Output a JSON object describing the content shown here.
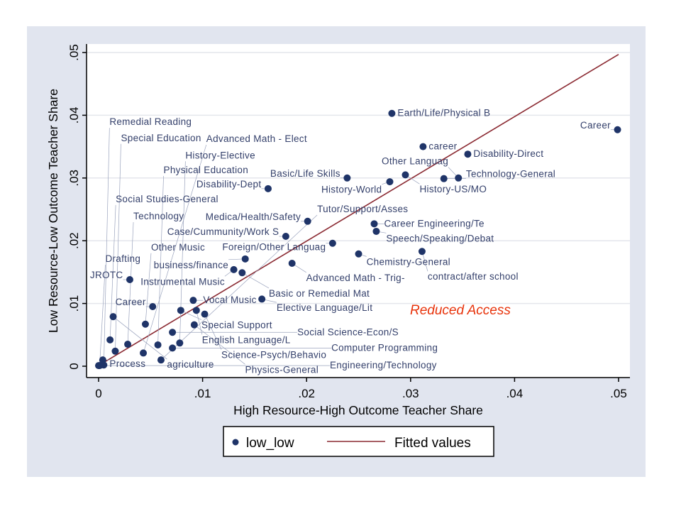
{
  "chart_data": {
    "type": "scatter",
    "xlabel": "High Resource-High Outcome Teacher Share",
    "ylabel": "Low Resource-Low Outcome Teacher Share",
    "xlim": [
      0,
      0.05
    ],
    "ylim": [
      0,
      0.05
    ],
    "xticks": [
      0,
      0.01,
      0.02,
      0.03,
      0.04,
      0.05
    ],
    "xtick_labels": [
      "0",
      ".01",
      ".02",
      ".03",
      ".04",
      ".05"
    ],
    "yticks": [
      0,
      0.01,
      0.02,
      0.03,
      0.04,
      0.05
    ],
    "ytick_labels": [
      "0",
      ".01",
      ".02",
      ".03",
      ".04",
      ".05"
    ],
    "grid": "horizontal",
    "legend": {
      "placement": "bottom",
      "entries": [
        "low_low",
        "Fitted values"
      ]
    },
    "annotation": "Reduced Access",
    "colors": {
      "points": "#1f3468",
      "fit": "#8b2a32",
      "background": "#e1e5ef",
      "annotation": "#e8340c"
    },
    "fitted_line": {
      "name": "Fitted values",
      "x": [
        0,
        0.05
      ],
      "y": [
        0.0001,
        0.0497
      ]
    },
    "series": [
      {
        "name": "low_low",
        "points": [
          {
            "x": 0.0282,
            "y": 0.0403,
            "label": "Earth/Life/Physical B"
          },
          {
            "x": 0.0312,
            "y": 0.035,
            "label": "career"
          },
          {
            "x": 0.0355,
            "y": 0.0338,
            "label": "Disability-Direct"
          },
          {
            "x": 0.0499,
            "y": 0.0377,
            "label": "Career"
          },
          {
            "x": 0.0239,
            "y": 0.03,
            "label": "Basic/Life Skills"
          },
          {
            "x": 0.0295,
            "y": 0.0305,
            "label": "History-US/MO"
          },
          {
            "x": 0.028,
            "y": 0.0294,
            "label": "History-World"
          },
          {
            "x": 0.0332,
            "y": 0.0299,
            "label": "Technology-General"
          },
          {
            "x": 0.0346,
            "y": 0.03,
            "label": "Other Languag"
          },
          {
            "x": 0.0163,
            "y": 0.0283,
            "label": "Disability-Dept"
          },
          {
            "x": 0.0201,
            "y": 0.0231,
            "label": "Medica/Health/Safety"
          },
          {
            "x": 0.0265,
            "y": 0.0227,
            "label": "Career Engineering/Te"
          },
          {
            "x": 0.0267,
            "y": 0.0215,
            "label": "Speech/Speaking/Debat"
          },
          {
            "x": 0.018,
            "y": 0.0207,
            "label": "Case/Cummunity/Work S"
          },
          {
            "x": 0.0225,
            "y": 0.0196,
            "label": "Foreign/Other Languag"
          },
          {
            "x": 0.025,
            "y": 0.0179,
            "label": "Chemistry-General"
          },
          {
            "x": 0.0311,
            "y": 0.0183,
            "label": "contract/after school"
          },
          {
            "x": 0.0141,
            "y": 0.0171,
            "label": "business/finance"
          },
          {
            "x": 0.0186,
            "y": 0.0164,
            "label": "Advanced Math - Trig-"
          },
          {
            "x": 0.013,
            "y": 0.0154,
            "label": "Instrumental Music"
          },
          {
            "x": 0.0138,
            "y": 0.0149,
            "label": "Basic or Remedial Mat"
          },
          {
            "x": 0.003,
            "y": 0.0138,
            "label": "JROTC"
          },
          {
            "x": 0.0091,
            "y": 0.0105,
            "label": "Vocal Music"
          },
          {
            "x": 0.0157,
            "y": 0.0107,
            "label": "Elective Language/Lit"
          },
          {
            "x": 0.0052,
            "y": 0.0095,
            "label": "Career"
          },
          {
            "x": 0.0079,
            "y": 0.0089,
            "label": "Special Support"
          },
          {
            "x": 0.0094,
            "y": 0.0089,
            "label": "English Language/L"
          },
          {
            "x": 0.0102,
            "y": 0.0083,
            "label": "Science-Psych/Behavio"
          },
          {
            "x": 0.0014,
            "y": 0.0079,
            "label": "agriculture"
          },
          {
            "x": 0.0045,
            "y": 0.0067,
            "label": "Other Music"
          },
          {
            "x": 0.0092,
            "y": 0.0066,
            "label": "Physics-General"
          },
          {
            "x": 0.0071,
            "y": 0.0054,
            "label": "Social Science-Econ/S"
          },
          {
            "x": 0.0011,
            "y": 0.0042,
            "label": "Social Studies-General"
          },
          {
            "x": 0.0028,
            "y": 0.0035,
            "label": "Technology"
          },
          {
            "x": 0.0057,
            "y": 0.0034,
            "label": "Physical Education"
          },
          {
            "x": 0.0078,
            "y": 0.0037,
            "label": "History-Elective"
          },
          {
            "x": 0.0071,
            "y": 0.0029,
            "label": "Computer Programming"
          },
          {
            "x": 0.0016,
            "y": 0.0024,
            "label": "Special Education"
          },
          {
            "x": 0.0043,
            "y": 0.0021,
            "label": "Advanced Math - Elect"
          },
          {
            "x": 0.006,
            "y": 0.001,
            "label": "Tutor/Support/Asses"
          },
          {
            "x": 0.0004,
            "y": 0.001,
            "label": "Process"
          },
          {
            "x": 0.0,
            "y": 0.0001,
            "label": "Engineering/Technology"
          },
          {
            "x": 0.0001,
            "y": 0.0001,
            "label": "Drafting"
          },
          {
            "x": 0.0005,
            "y": 0.0002,
            "label": "Remedial Reading"
          }
        ]
      }
    ]
  }
}
